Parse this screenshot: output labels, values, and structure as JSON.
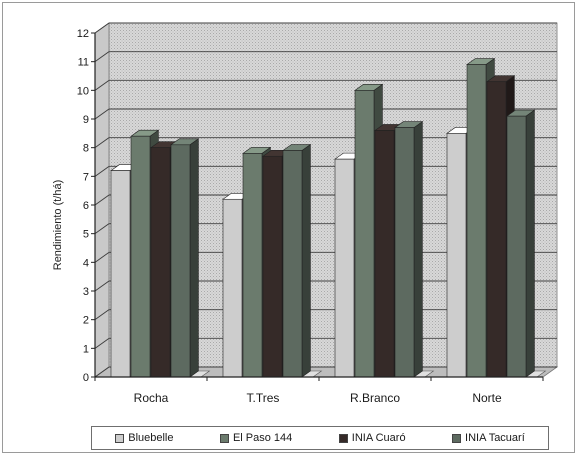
{
  "chart_data": {
    "type": "bar",
    "ylabel": "Rendimiento (t/há)",
    "xlabel": "",
    "ylim": [
      0,
      12
    ],
    "yticks": [
      0,
      1,
      2,
      3,
      4,
      5,
      6,
      7,
      8,
      9,
      10,
      11,
      12
    ],
    "grid": true,
    "legend_position": "bottom",
    "categories": [
      "Rocha",
      "T.Tres",
      "R.Branco",
      "Norte"
    ],
    "series": [
      {
        "name": "Bluebelle",
        "values": [
          7.2,
          6.2,
          7.6,
          8.5
        ],
        "color": "#cdcdcd"
      },
      {
        "name": "El Paso 144",
        "values": [
          8.4,
          7.8,
          10.0,
          10.9
        ],
        "color": "#6b7b6d"
      },
      {
        "name": "INIA Cuaró",
        "values": [
          8.0,
          7.7,
          8.6,
          10.3
        ],
        "color": "#352a28"
      },
      {
        "name": "INIA Tacuarí",
        "values": [
          8.1,
          7.9,
          8.7,
          9.1
        ],
        "color": "#5d6a60"
      }
    ]
  }
}
